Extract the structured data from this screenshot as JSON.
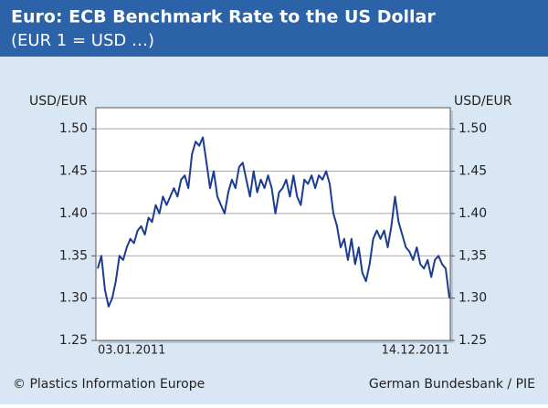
{
  "chart_data": {
    "type": "line",
    "title": "Euro: ECB Benchmark Rate to the US Dollar",
    "subtitle": "(EUR 1 = USD …)",
    "y_label": "USD/EUR",
    "y2_label": "USD/EUR",
    "source_left": "© Plastics Information Europe",
    "source_right": "German Bundesbank / PIE",
    "color": "#1b3c92",
    "grid": true,
    "ylim": [
      1.25,
      1.525
    ],
    "yticks": [
      {
        "value": 1.25,
        "label": "1.25"
      },
      {
        "value": 1.3,
        "label": "1.30"
      },
      {
        "value": 1.35,
        "label": "1.35"
      },
      {
        "value": 1.4,
        "label": "1.40"
      },
      {
        "value": 1.45,
        "label": "1.45"
      },
      {
        "value": 1.5,
        "label": "1.50"
      }
    ],
    "y2lim": [
      1.25,
      1.525
    ],
    "y2ticks": [
      {
        "value": 1.25,
        "label": "1.25"
      },
      {
        "value": 1.3,
        "label": "1.30"
      },
      {
        "value": 1.35,
        "label": "1,35"
      },
      {
        "value": 1.4,
        "label": "1.40"
      },
      {
        "value": 1.45,
        "label": "1.45"
      },
      {
        "value": 1.5,
        "label": "1.50"
      }
    ],
    "categories": [
      "03.01.2011",
      null,
      null,
      null,
      null,
      null,
      null,
      null,
      null,
      null,
      null,
      null,
      null,
      null,
      null,
      null,
      null,
      null,
      null,
      null,
      null,
      null,
      null,
      null,
      null,
      null,
      null,
      null,
      null,
      null,
      null,
      null,
      null,
      null,
      null,
      null,
      null,
      null,
      null,
      null,
      null,
      null,
      null,
      null,
      null,
      null,
      null,
      null,
      null,
      null,
      null,
      null,
      null,
      null,
      null,
      null,
      null,
      null,
      null,
      null,
      null,
      null,
      null,
      null,
      null,
      null,
      null,
      null,
      null,
      null,
      null,
      null,
      null,
      null,
      null,
      null,
      null,
      null,
      null,
      null,
      null,
      null,
      null,
      null,
      null,
      null,
      null,
      null,
      null,
      null,
      null,
      null,
      null,
      null,
      null,
      null,
      null,
      "14.12.2011"
    ],
    "values": [
      1.335,
      1.35,
      1.31,
      1.29,
      1.3,
      1.32,
      1.35,
      1.345,
      1.36,
      1.37,
      1.365,
      1.38,
      1.385,
      1.375,
      1.395,
      1.39,
      1.41,
      1.4,
      1.42,
      1.41,
      1.42,
      1.43,
      1.42,
      1.44,
      1.445,
      1.43,
      1.47,
      1.485,
      1.48,
      1.49,
      1.46,
      1.43,
      1.45,
      1.42,
      1.41,
      1.4,
      1.425,
      1.44,
      1.43,
      1.455,
      1.46,
      1.44,
      1.42,
      1.45,
      1.425,
      1.44,
      1.43,
      1.445,
      1.43,
      1.4,
      1.425,
      1.43,
      1.44,
      1.42,
      1.445,
      1.42,
      1.41,
      1.44,
      1.435,
      1.445,
      1.43,
      1.445,
      1.44,
      1.45,
      1.435,
      1.4,
      1.385,
      1.36,
      1.37,
      1.345,
      1.37,
      1.34,
      1.36,
      1.33,
      1.32,
      1.34,
      1.37,
      1.38,
      1.37,
      1.38,
      1.36,
      1.385,
      1.42,
      1.39,
      1.375,
      1.36,
      1.355,
      1.345,
      1.36,
      1.34,
      1.335,
      1.345,
      1.325,
      1.345,
      1.35,
      1.34,
      1.335,
      1.3
    ]
  }
}
